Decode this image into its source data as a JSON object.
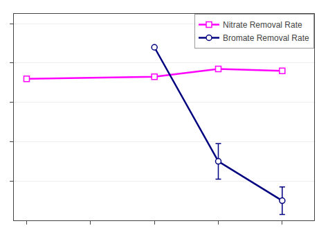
{
  "chart_data": {
    "type": "line",
    "series": [
      {
        "name": "Nitrate Removal Rate",
        "color": "#FF00FF",
        "marker": "square",
        "x": [
          0,
          2,
          3,
          4
        ],
        "values": [
          0.72,
          0.73,
          0.77,
          0.76
        ]
      },
      {
        "name": "Bromate Removal Rate",
        "color": "#000080",
        "marker": "circle",
        "x": [
          2,
          3,
          4
        ],
        "values": [
          0.88,
          0.3,
          0.1
        ],
        "errors": [
          0.0,
          0.09,
          0.07
        ]
      }
    ],
    "xlim": [
      -0.2,
      4.5
    ],
    "xticks": [
      0,
      1,
      2,
      3,
      4
    ],
    "ylim": [
      0.0,
      1.05
    ],
    "yticks": [
      0.2,
      0.4,
      0.6,
      0.8,
      1.0
    ],
    "grid": "y",
    "legend": "upper right",
    "tick_labels": false
  }
}
